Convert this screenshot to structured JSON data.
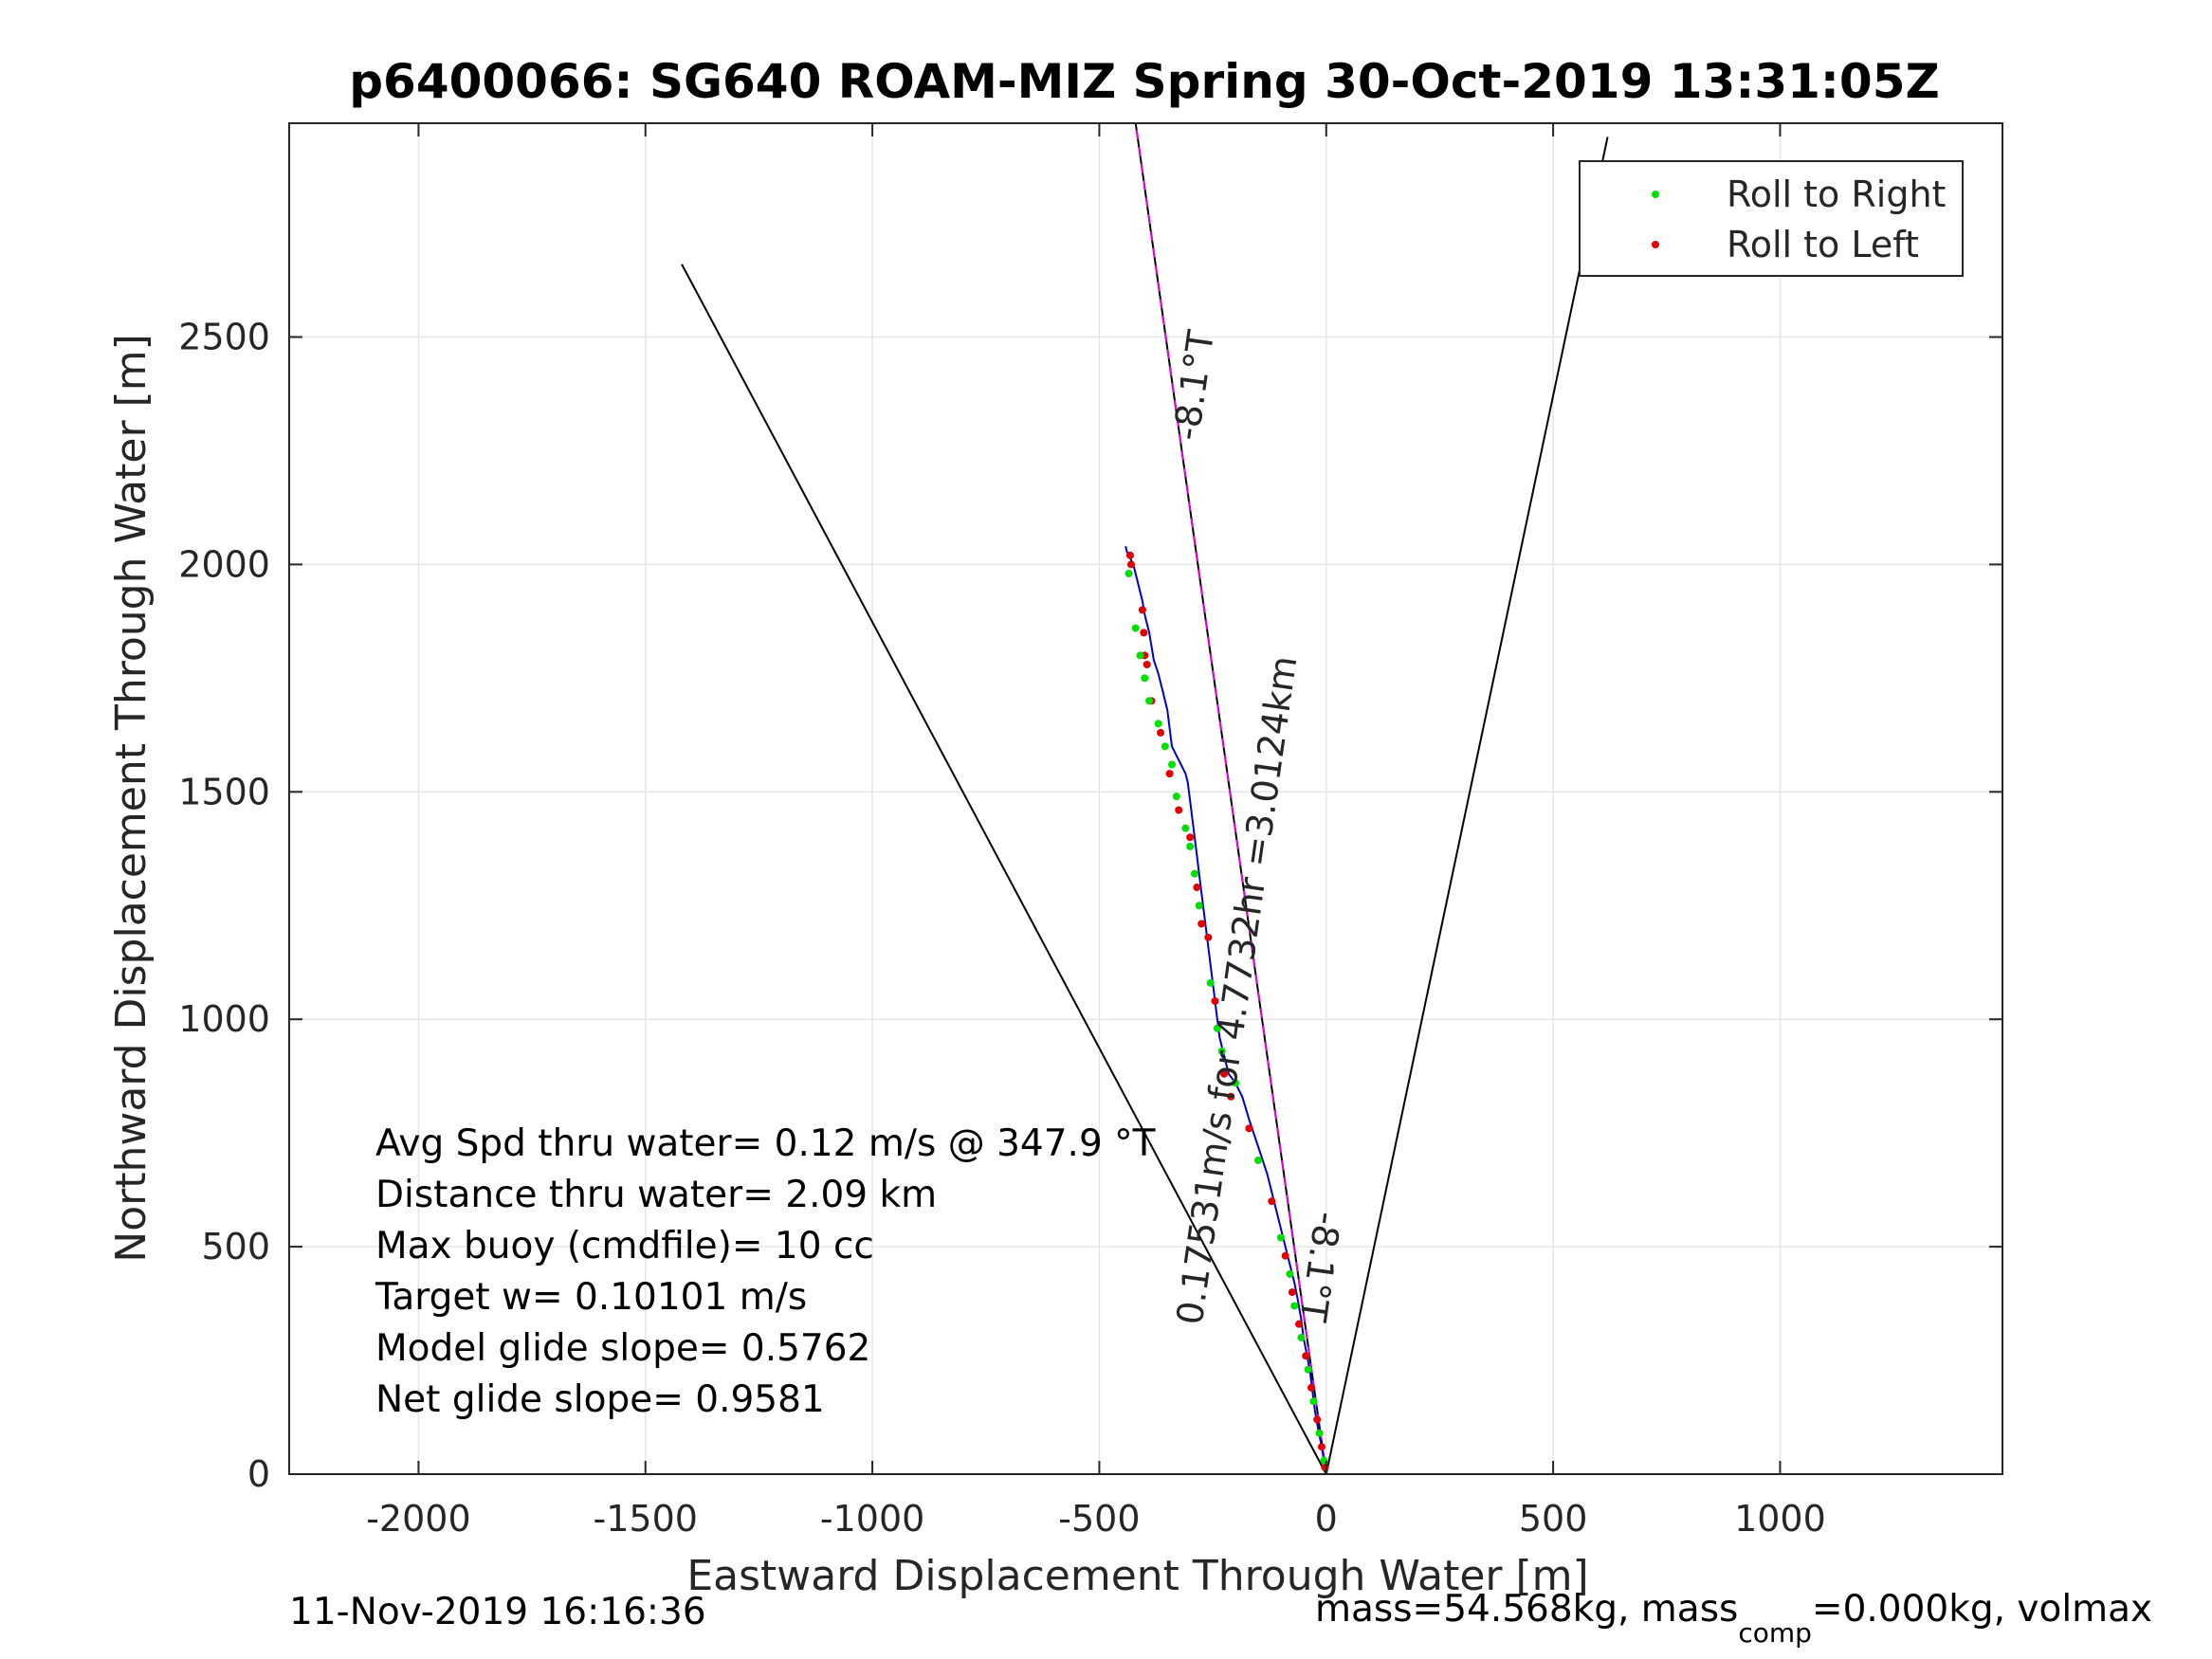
{
  "chart_data": {
    "type": "scatter",
    "title": "p6400066: SG640 ROAM-MIZ Spring 30-Oct-2019 13:31:05Z",
    "xlabel": "Eastward Displacement Through Water [m]",
    "ylabel": "Northward Displacement Through Water [m]",
    "xlim": [
      -2285,
      1490
    ],
    "ylim": [
      0,
      2970
    ],
    "xticks": [
      -2000,
      -1500,
      -1000,
      -500,
      0,
      500,
      1000
    ],
    "yticks": [
      0,
      500,
      1000,
      1500,
      2000,
      2500
    ],
    "xtick_labels": [
      "-2000",
      "-1500",
      "-1000",
      "-500",
      "0",
      "500",
      "1000"
    ],
    "ytick_labels": [
      "0",
      "500",
      "1000",
      "1500",
      "2000",
      "2500"
    ],
    "grid": true,
    "legend_position": "top-right",
    "legend": [
      {
        "label": "Roll to Right",
        "color": "#00e000"
      },
      {
        "label": "Roll to Left",
        "color": "#e00000"
      }
    ],
    "colors": {
      "track": "#0000cc",
      "heading": "#e000e0",
      "envelope": "#000000"
    },
    "envelope_lines": [
      {
        "x": [
          0,
          -1420
        ],
        "y": [
          0,
          2660
        ]
      },
      {
        "x": [
          0,
          620
        ],
        "y": [
          0,
          2940
        ]
      }
    ],
    "heading_line": {
      "x": [
        0,
        -420
      ],
      "y": [
        0,
        2970
      ]
    },
    "track": {
      "x": [
        0,
        -5,
        -10,
        -18,
        -25,
        -30,
        -35,
        -42,
        -50,
        -55,
        -62,
        -70,
        -80,
        -90,
        -100,
        -115,
        -130,
        -150,
        -170,
        -185,
        -200,
        -215,
        -225,
        -235,
        -240,
        -245,
        -250,
        -255,
        -260,
        -265,
        -270,
        -275,
        -280,
        -285,
        -290,
        -295,
        -300,
        -305,
        -310,
        -320,
        -330,
        -340,
        -345,
        -350,
        -360,
        -370,
        -380,
        -385,
        -390,
        -395,
        -400,
        -405,
        -410,
        -415,
        -420,
        -425,
        -430,
        -435,
        -440,
        -442
      ],
      "y": [
        0,
        30,
        60,
        100,
        140,
        180,
        220,
        260,
        300,
        340,
        380,
        420,
        460,
        500,
        540,
        600,
        660,
        720,
        780,
        830,
        860,
        880,
        920,
        960,
        1000,
        1040,
        1080,
        1120,
        1160,
        1200,
        1240,
        1280,
        1320,
        1360,
        1400,
        1440,
        1480,
        1520,
        1540,
        1560,
        1580,
        1600,
        1640,
        1680,
        1720,
        1760,
        1790,
        1820,
        1850,
        1870,
        1890,
        1920,
        1940,
        1960,
        1980,
        2000,
        2010,
        2020,
        2030,
        2040
      ]
    },
    "roll_right": {
      "x": [
        -5,
        -15,
        -28,
        -40,
        -55,
        -70,
        -80,
        -100,
        -150,
        -200,
        -230,
        -240,
        -255,
        -280,
        -290,
        -300,
        -310,
        -330,
        -340,
        -355,
        -370,
        -390,
        -400,
        -410,
        -420,
        -435
      ],
      "y": [
        30,
        90,
        160,
        230,
        300,
        370,
        440,
        520,
        690,
        860,
        930,
        980,
        1080,
        1250,
        1320,
        1380,
        1420,
        1490,
        1560,
        1600,
        1650,
        1700,
        1750,
        1800,
        1860,
        1980
      ]
    },
    "roll_left": {
      "x": [
        -3,
        -10,
        -20,
        -33,
        -45,
        -60,
        -75,
        -90,
        -120,
        -170,
        -210,
        -225,
        -245,
        -260,
        -275,
        -285,
        -300,
        -325,
        -345,
        -365,
        -385,
        -395,
        -400,
        -402,
        -405,
        -430,
        -432
      ],
      "y": [
        15,
        60,
        120,
        190,
        260,
        330,
        400,
        480,
        600,
        760,
        830,
        880,
        1040,
        1180,
        1210,
        1290,
        1400,
        1460,
        1540,
        1630,
        1700,
        1780,
        1800,
        1850,
        1900,
        2000,
        2020
      ]
    },
    "annotations": [
      {
        "text": "-8.1°T",
        "x": -265,
        "y": 2390,
        "rotation": -81.9
      },
      {
        "text": "0.17531m/s for 4.7732hr =3.0124km",
        "x": -170,
        "y": 1060,
        "rotation": -81.9
      },
      {
        "text": "-8.1°T",
        "x": -40,
        "y": 460,
        "rotation": 98.1
      }
    ],
    "info_lines": [
      "Avg Spd thru water=  0.12 m/s @ 347.9 °T",
      "Distance thru water=  2.09 km",
      "Max buoy (cmdfile)= 10 cc",
      "Target w= 0.10101 m/s",
      "Model glide slope= 0.5762",
      "Net glide slope= 0.9581"
    ]
  },
  "footer": {
    "timestamp": "11-Nov-2019 16:16:36",
    "mass_text": "mass=54.568kg, mass",
    "mass_sub": "comp",
    "mass_rest": "=0.000kg, volmax"
  }
}
